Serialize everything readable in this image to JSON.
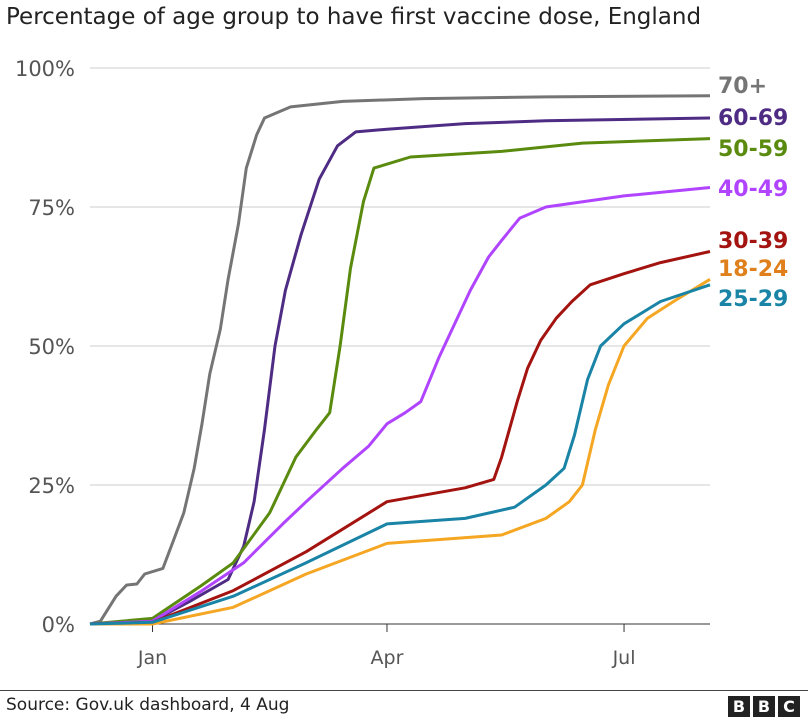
{
  "chart_data": {
    "type": "line",
    "title": "Percentage of age group to have first vaccine dose, England",
    "xlabel": "",
    "ylabel": "",
    "ylim": [
      0,
      100
    ],
    "yticks": [
      0,
      25,
      50,
      75,
      100
    ],
    "ytick_labels": [
      "0%",
      "25%",
      "50%",
      "75%",
      "100%"
    ],
    "xlim": [
      "2020-12-08",
      "2021-08-03"
    ],
    "xticks": [
      "2021-01-01",
      "2021-04-01",
      "2021-07-01"
    ],
    "xtick_labels": [
      "Jan",
      "Apr",
      "Jul"
    ],
    "grid": "horizontal",
    "legend": "direct labels at right",
    "series": [
      {
        "name": "70+",
        "color": "#757575",
        "points": [
          [
            "2020-12-08",
            0
          ],
          [
            "2020-12-12",
            0.5
          ],
          [
            "2020-12-18",
            5
          ],
          [
            "2020-12-22",
            7
          ],
          [
            "2020-12-26",
            7.2
          ],
          [
            "2020-12-29",
            9
          ],
          [
            "2021-01-05",
            10
          ],
          [
            "2021-01-09",
            15
          ],
          [
            "2021-01-13",
            20
          ],
          [
            "2021-01-17",
            28
          ],
          [
            "2021-01-20",
            36
          ],
          [
            "2021-01-23",
            45
          ],
          [
            "2021-01-27",
            53
          ],
          [
            "2021-01-30",
            62
          ],
          [
            "2021-02-03",
            72
          ],
          [
            "2021-02-06",
            82
          ],
          [
            "2021-02-10",
            88
          ],
          [
            "2021-02-13",
            91
          ],
          [
            "2021-02-23",
            93
          ],
          [
            "2021-03-15",
            94
          ],
          [
            "2021-04-15",
            94.5
          ],
          [
            "2021-06-01",
            94.8
          ],
          [
            "2021-08-03",
            95
          ]
        ]
      },
      {
        "name": "60-69",
        "color": "#4f2c84",
        "points": [
          [
            "2020-12-08",
            0
          ],
          [
            "2021-01-01",
            0.5
          ],
          [
            "2021-01-15",
            4
          ],
          [
            "2021-01-30",
            8
          ],
          [
            "2021-02-05",
            14
          ],
          [
            "2021-02-09",
            22
          ],
          [
            "2021-02-13",
            35
          ],
          [
            "2021-02-17",
            50
          ],
          [
            "2021-02-21",
            60
          ],
          [
            "2021-02-27",
            70
          ],
          [
            "2021-03-06",
            80
          ],
          [
            "2021-03-13",
            86
          ],
          [
            "2021-03-20",
            88.5
          ],
          [
            "2021-04-01",
            89
          ],
          [
            "2021-05-01",
            90
          ],
          [
            "2021-06-01",
            90.5
          ],
          [
            "2021-08-03",
            91
          ]
        ]
      },
      {
        "name": "50-59",
        "color": "#5a8b0f",
        "points": [
          [
            "2020-12-08",
            0
          ],
          [
            "2021-01-01",
            1
          ],
          [
            "2021-01-20",
            7
          ],
          [
            "2021-02-01",
            11
          ],
          [
            "2021-02-15",
            20
          ],
          [
            "2021-02-25",
            30
          ],
          [
            "2021-03-05",
            35
          ],
          [
            "2021-03-10",
            38
          ],
          [
            "2021-03-14",
            50
          ],
          [
            "2021-03-18",
            64
          ],
          [
            "2021-03-23",
            76
          ],
          [
            "2021-03-27",
            82
          ],
          [
            "2021-04-10",
            84
          ],
          [
            "2021-05-15",
            85
          ],
          [
            "2021-06-15",
            86.5
          ],
          [
            "2021-08-03",
            87.3
          ]
        ]
      },
      {
        "name": "40-49",
        "color": "#b044ff",
        "points": [
          [
            "2020-12-08",
            0
          ],
          [
            "2021-01-01",
            0.5
          ],
          [
            "2021-01-20",
            6
          ],
          [
            "2021-02-05",
            11
          ],
          [
            "2021-02-20",
            18
          ],
          [
            "2021-03-01",
            22
          ],
          [
            "2021-03-15",
            28
          ],
          [
            "2021-03-25",
            32
          ],
          [
            "2021-04-01",
            36
          ],
          [
            "2021-04-08",
            38
          ],
          [
            "2021-04-14",
            40
          ],
          [
            "2021-04-21",
            48
          ],
          [
            "2021-05-03",
            60
          ],
          [
            "2021-05-10",
            66
          ],
          [
            "2021-05-15",
            69
          ],
          [
            "2021-05-22",
            73
          ],
          [
            "2021-06-01",
            75
          ],
          [
            "2021-07-01",
            77
          ],
          [
            "2021-08-03",
            78.5
          ]
        ]
      },
      {
        "name": "30-39",
        "color": "#a3130f",
        "points": [
          [
            "2020-12-08",
            0
          ],
          [
            "2021-01-01",
            0.3
          ],
          [
            "2021-02-01",
            6
          ],
          [
            "2021-03-01",
            13
          ],
          [
            "2021-04-01",
            22
          ],
          [
            "2021-05-01",
            24.5
          ],
          [
            "2021-05-12",
            26
          ],
          [
            "2021-05-15",
            30
          ],
          [
            "2021-05-21",
            40
          ],
          [
            "2021-05-25",
            46
          ],
          [
            "2021-05-30",
            51
          ],
          [
            "2021-06-05",
            55
          ],
          [
            "2021-06-11",
            58
          ],
          [
            "2021-06-18",
            61
          ],
          [
            "2021-07-01",
            63
          ],
          [
            "2021-07-15",
            65
          ],
          [
            "2021-08-03",
            67
          ]
        ]
      },
      {
        "name": "18-24",
        "color": "#f5a623",
        "label_color": "#e0801c",
        "points": [
          [
            "2020-12-08",
            0
          ],
          [
            "2021-01-01",
            0
          ],
          [
            "2021-02-01",
            3
          ],
          [
            "2021-03-01",
            9
          ],
          [
            "2021-04-01",
            14.5
          ],
          [
            "2021-05-15",
            16
          ],
          [
            "2021-06-01",
            19
          ],
          [
            "2021-06-10",
            22
          ],
          [
            "2021-06-15",
            25
          ],
          [
            "2021-06-20",
            35
          ],
          [
            "2021-06-25",
            43
          ],
          [
            "2021-07-01",
            50
          ],
          [
            "2021-07-10",
            55
          ],
          [
            "2021-07-20",
            58
          ],
          [
            "2021-08-03",
            62
          ]
        ]
      },
      {
        "name": "25-29",
        "color": "#1a84a6",
        "points": [
          [
            "2020-12-08",
            0
          ],
          [
            "2021-01-01",
            0.3
          ],
          [
            "2021-02-01",
            5
          ],
          [
            "2021-03-01",
            11
          ],
          [
            "2021-04-01",
            18
          ],
          [
            "2021-05-01",
            19
          ],
          [
            "2021-05-20",
            21
          ],
          [
            "2021-06-01",
            25
          ],
          [
            "2021-06-08",
            28
          ],
          [
            "2021-06-12",
            34
          ],
          [
            "2021-06-17",
            44
          ],
          [
            "2021-06-22",
            50
          ],
          [
            "2021-07-01",
            54
          ],
          [
            "2021-07-15",
            58
          ],
          [
            "2021-08-03",
            61
          ]
        ]
      }
    ]
  },
  "footer": {
    "source": "Source: Gov.uk dashboard, 4 Aug",
    "logo": [
      "B",
      "B",
      "C"
    ]
  }
}
